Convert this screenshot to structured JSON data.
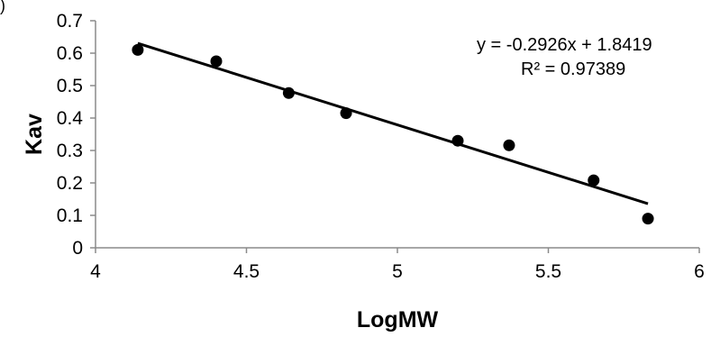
{
  "chart_data": {
    "type": "scatter",
    "title": "",
    "corner_mark": ")",
    "xlabel": "LogMW",
    "ylabel": "Kav",
    "xlim": [
      4,
      6
    ],
    "ylim": [
      0,
      0.7
    ],
    "x_ticks": [
      "4",
      "4.5",
      "5",
      "5.5",
      "6"
    ],
    "y_ticks": [
      "0",
      "0.1",
      "0.2",
      "0.3",
      "0.4",
      "0.5",
      "0.6",
      "0.7"
    ],
    "grid": false,
    "points": [
      {
        "x": 4.14,
        "y": 0.61
      },
      {
        "x": 4.4,
        "y": 0.575
      },
      {
        "x": 4.64,
        "y": 0.477
      },
      {
        "x": 4.83,
        "y": 0.415
      },
      {
        "x": 5.2,
        "y": 0.33
      },
      {
        "x": 5.37,
        "y": 0.316
      },
      {
        "x": 5.65,
        "y": 0.208
      },
      {
        "x": 5.83,
        "y": 0.09
      }
    ],
    "trendline": {
      "slope": -0.2926,
      "intercept": 1.8419,
      "x_range": [
        4.14,
        5.83
      ]
    },
    "equation_label": "y = -0.2926x + 1.8419",
    "r2_label": "R² = 0.97389",
    "marker_color": "#000000",
    "line_color": "#000000"
  }
}
